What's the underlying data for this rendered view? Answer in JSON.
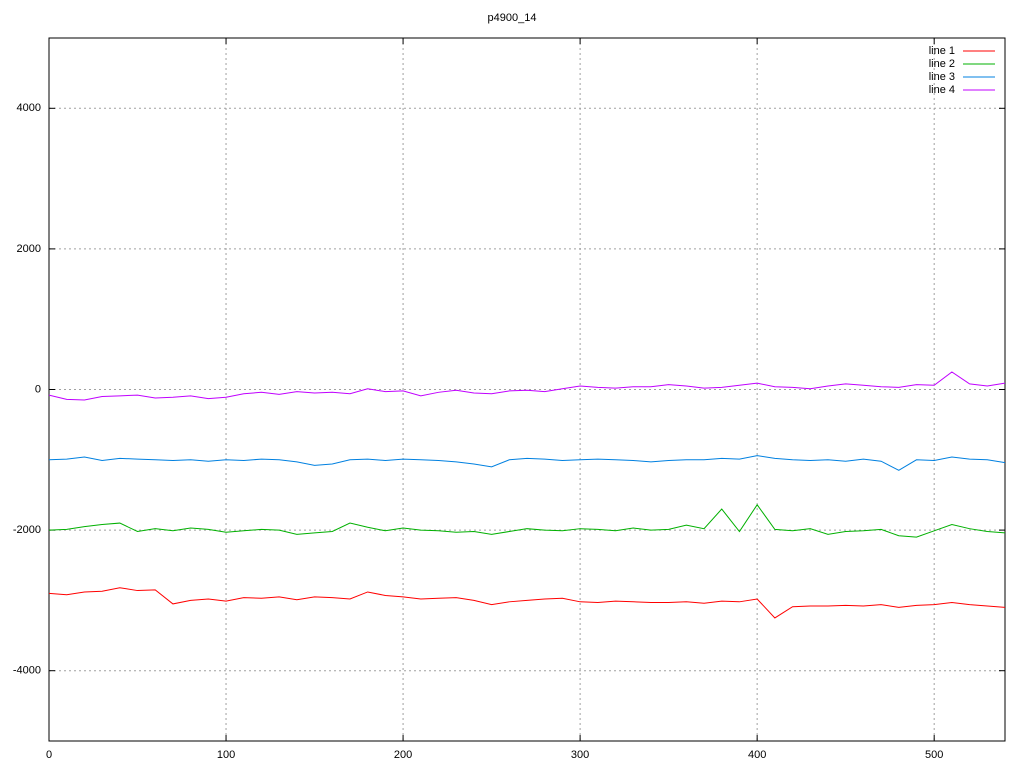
{
  "chart_data": {
    "type": "line",
    "title": "p4900_14",
    "x": [
      0,
      10,
      20,
      30,
      40,
      50,
      60,
      70,
      80,
      90,
      100,
      110,
      120,
      130,
      140,
      150,
      160,
      170,
      180,
      190,
      200,
      210,
      220,
      230,
      240,
      250,
      260,
      270,
      280,
      290,
      300,
      310,
      320,
      330,
      340,
      350,
      360,
      370,
      380,
      390,
      400,
      410,
      420,
      430,
      440,
      450,
      460,
      470,
      480,
      490,
      500,
      510,
      520,
      530,
      540
    ],
    "series": [
      {
        "name": "line 1",
        "color": "#ff0000",
        "values": [
          -2900,
          -2920,
          -2880,
          -2870,
          -2820,
          -2860,
          -2850,
          -3050,
          -3000,
          -2980,
          -3010,
          -2960,
          -2970,
          -2950,
          -2990,
          -2950,
          -2960,
          -2980,
          -2880,
          -2930,
          -2950,
          -2980,
          -2970,
          -2960,
          -3000,
          -3060,
          -3020,
          -3000,
          -2980,
          -2970,
          -3020,
          -3030,
          -3010,
          -3020,
          -3030,
          -3030,
          -3020,
          -3040,
          -3010,
          -3020,
          -2980,
          -3250,
          -3090,
          -3080,
          -3080,
          -3070,
          -3080,
          -3060,
          -3100,
          -3070,
          -3060,
          -3030,
          -3060,
          -3080,
          -3100
        ]
      },
      {
        "name": "line 2",
        "color": "#00b000",
        "values": [
          -2000,
          -1990,
          -1950,
          -1920,
          -1900,
          -2020,
          -1980,
          -2010,
          -1970,
          -1990,
          -2030,
          -2010,
          -1990,
          -2000,
          -2060,
          -2040,
          -2020,
          -1900,
          -1960,
          -2010,
          -1970,
          -2000,
          -2010,
          -2030,
          -2020,
          -2060,
          -2020,
          -1980,
          -2000,
          -2010,
          -1980,
          -1990,
          -2010,
          -1970,
          -2000,
          -1990,
          -1930,
          -1980,
          -1700,
          -2020,
          -1640,
          -1990,
          -2010,
          -1980,
          -2060,
          -2020,
          -2010,
          -1990,
          -2080,
          -2100,
          -2010,
          -1920,
          -1980,
          -2020,
          -2040
        ]
      },
      {
        "name": "line 3",
        "color": "#0080e0",
        "values": [
          -1000,
          -990,
          -960,
          -1010,
          -980,
          -990,
          -1000,
          -1010,
          -1000,
          -1020,
          -1000,
          -1010,
          -990,
          -1000,
          -1030,
          -1080,
          -1060,
          -1000,
          -990,
          -1010,
          -990,
          -1000,
          -1010,
          -1030,
          -1060,
          -1100,
          -1000,
          -980,
          -990,
          -1010,
          -1000,
          -990,
          -1000,
          -1010,
          -1030,
          -1010,
          -1000,
          -1000,
          -980,
          -990,
          -940,
          -980,
          -1000,
          -1010,
          -1000,
          -1020,
          -990,
          -1020,
          -1150,
          -1000,
          -1010,
          -960,
          -990,
          -1000,
          -1040
        ]
      },
      {
        "name": "line 4",
        "color": "#c000ff",
        "values": [
          -80,
          -140,
          -150,
          -100,
          -90,
          -80,
          -120,
          -110,
          -90,
          -130,
          -110,
          -60,
          -40,
          -70,
          -30,
          -50,
          -40,
          -60,
          10,
          -30,
          -20,
          -90,
          -40,
          -10,
          -50,
          -60,
          -20,
          -10,
          -30,
          10,
          50,
          30,
          20,
          40,
          40,
          70,
          50,
          20,
          30,
          60,
          90,
          40,
          30,
          10,
          50,
          80,
          60,
          40,
          30,
          70,
          60,
          250,
          80,
          50,
          90
        ]
      }
    ],
    "xlim": [
      0,
      540
    ],
    "xticks": [
      0,
      100,
      200,
      300,
      400,
      500
    ],
    "ylim": [
      -5000,
      5000
    ],
    "yticks": [
      -4000,
      -2000,
      0,
      2000,
      4000
    ],
    "grid": true,
    "legend": "top-right"
  }
}
